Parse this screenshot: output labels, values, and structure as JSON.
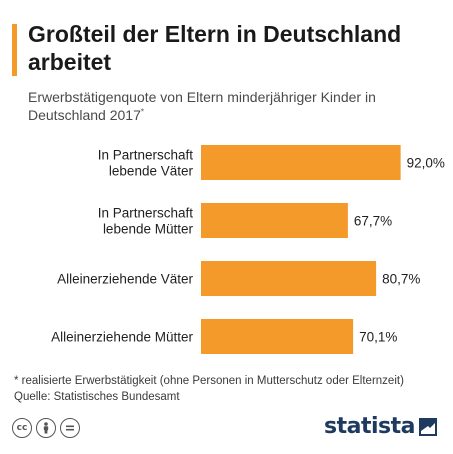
{
  "header": {
    "title": "Großteil der Eltern in Deutschland arbeitet",
    "subtitle": "Erwerbstätigenquote von Eltern minderjähriger Kinder in Deutschland 2017",
    "subtitle_marker": "*"
  },
  "chart_data": {
    "type": "bar",
    "orientation": "horizontal",
    "categories": [
      [
        "In Partnerschaft",
        "lebende Väter"
      ],
      [
        "In Partnerschaft",
        "lebende Mütter"
      ],
      [
        "Alleinerziehende Väter"
      ],
      [
        "Alleinerziehende Mütter"
      ]
    ],
    "values": [
      92.0,
      67.7,
      80.7,
      70.1
    ],
    "value_labels": [
      "92,0%",
      "67,7%",
      "80,7%",
      "70,1%"
    ],
    "unit": "%",
    "xlim": [
      0,
      100
    ],
    "grid": false,
    "bar_color": "#f39a2b"
  },
  "footnote": {
    "note": "* realisierte Erwerbstätigkeit (ohne Personen in Mutterschutz oder Elternzeit)",
    "source": "Quelle: Statistisches Bundesamt"
  },
  "footer": {
    "license_icons": [
      "cc-icon",
      "by-icon",
      "nd-icon"
    ],
    "brand": "statista"
  },
  "colors": {
    "accent": "#f39a2b",
    "brand": "#1f3a5f"
  }
}
